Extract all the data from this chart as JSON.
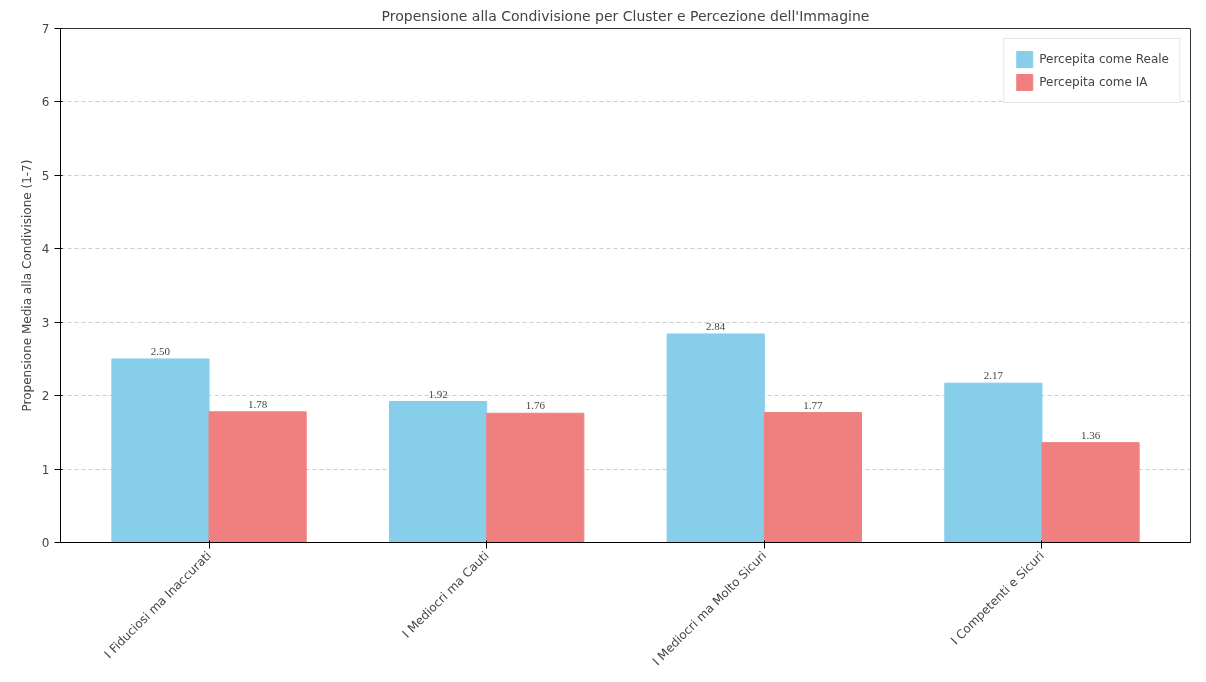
{
  "chart_data": {
    "type": "bar",
    "title": "Propensione alla Condivisione per Cluster e Percezione dell'Immagine",
    "ylabel": "Propensione Media alla Condivisione (1-7)",
    "categories": [
      "I Fiduciosi ma Inaccurati",
      "I Mediocri ma Cauti",
      "I Mediocri ma Molto Sicuri",
      "I Competenti e Sicuri"
    ],
    "series": [
      {
        "name": "Percepita come Reale",
        "color": "#87ceeb",
        "values": [
          2.5,
          1.92,
          2.84,
          2.17
        ],
        "value_labels": [
          "2.50",
          "1.92",
          "2.84",
          "2.17"
        ]
      },
      {
        "name": "Percepita come IA",
        "color": "#f08080",
        "values": [
          1.78,
          1.76,
          1.77,
          1.36
        ],
        "value_labels": [
          "1.78",
          "1.76",
          "1.77",
          "1.36"
        ]
      }
    ],
    "ylim": [
      0,
      7
    ],
    "yticks": [
      0,
      1,
      2,
      3,
      4,
      5,
      6,
      7
    ],
    "grid": "y",
    "legend": "top right"
  }
}
